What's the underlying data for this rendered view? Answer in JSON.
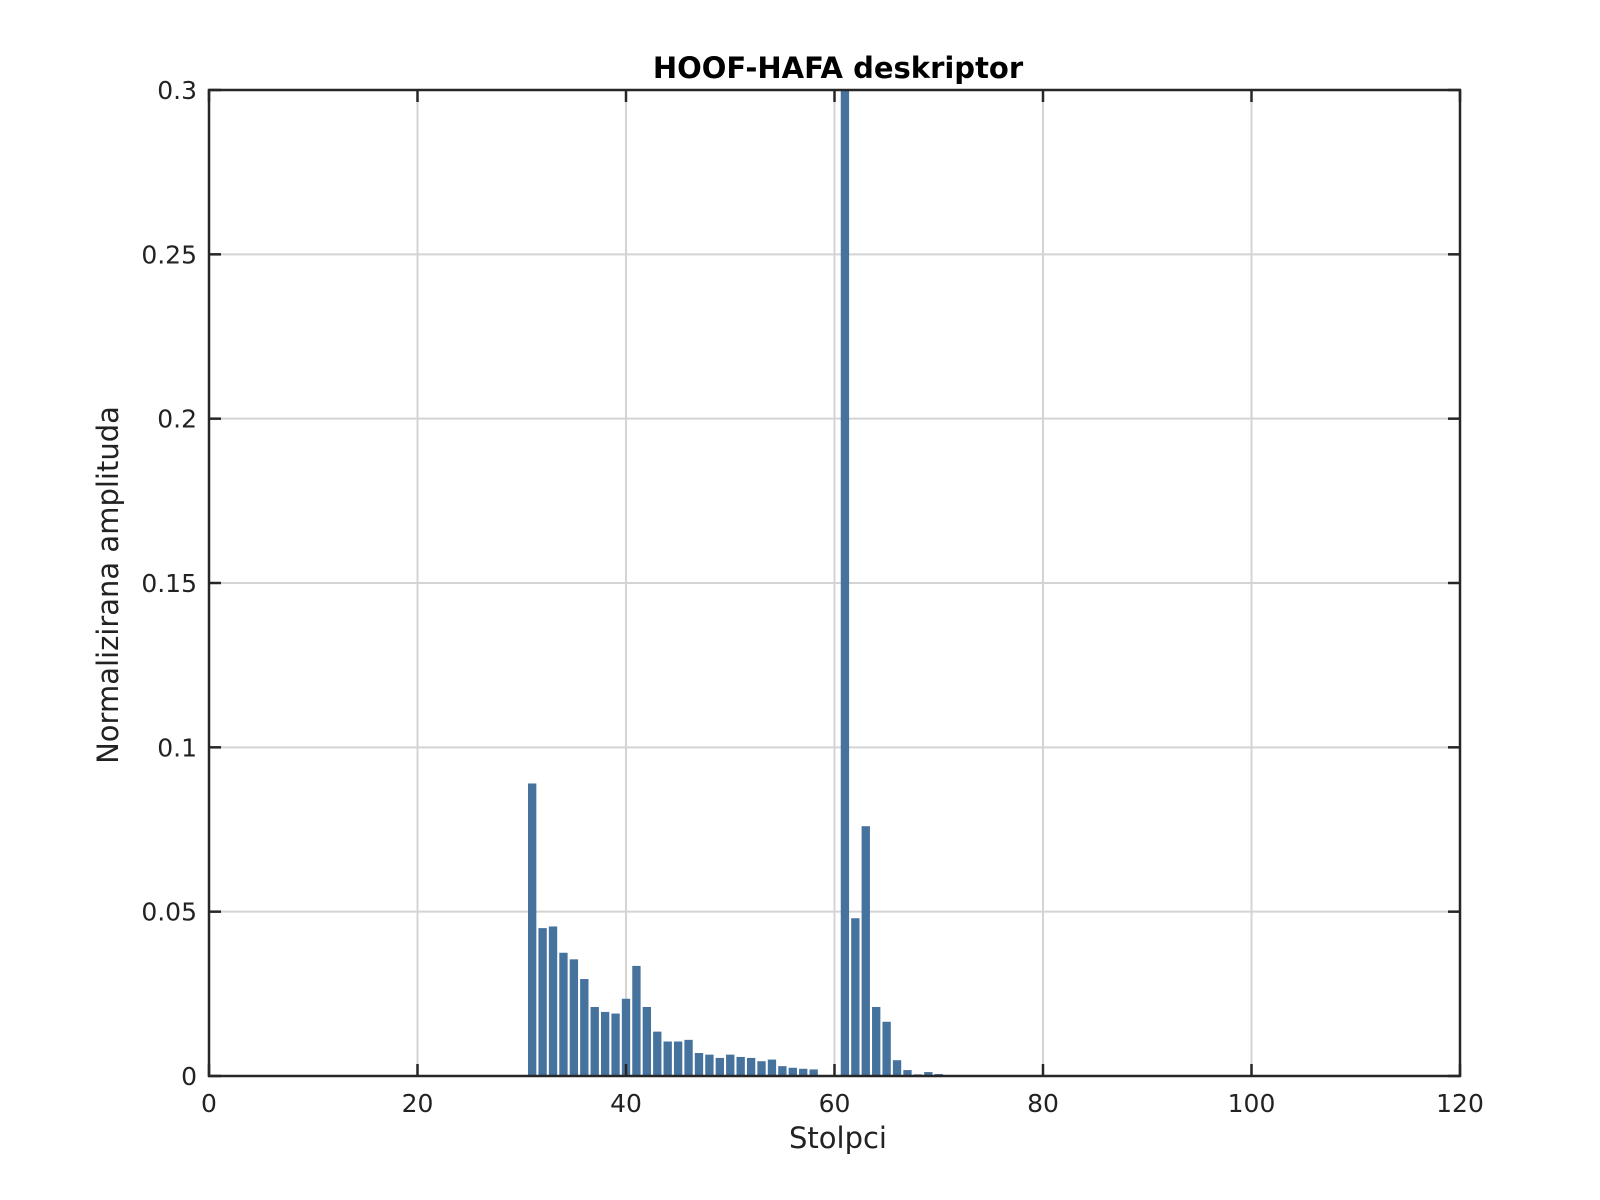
{
  "chart_data": {
    "type": "bar",
    "title": "HOOF-HAFA deskriptor",
    "xlabel": "Stolpci",
    "ylabel": "Normalizirana amplituda",
    "xlim": [
      0,
      120
    ],
    "ylim": [
      0,
      0.3
    ],
    "xticks": [
      0,
      20,
      40,
      60,
      80,
      100,
      120
    ],
    "xtick_labels": [
      "0",
      "20",
      "40",
      "60",
      "80",
      "100",
      "120"
    ],
    "yticks": [
      0,
      0.05,
      0.1,
      0.15,
      0.2,
      0.25,
      0.3
    ],
    "ytick_labels": [
      "0",
      "0.05",
      "0.1",
      "0.15",
      "0.2",
      "0.25",
      "0.3"
    ],
    "grid": true,
    "bar_color": "#46729e",
    "x": [
      31,
      32,
      33,
      34,
      35,
      36,
      37,
      38,
      39,
      40,
      41,
      42,
      43,
      44,
      45,
      46,
      47,
      48,
      49,
      50,
      51,
      52,
      53,
      54,
      55,
      56,
      57,
      58,
      59,
      60,
      61,
      62,
      63,
      64,
      65,
      66,
      67,
      68,
      69,
      70
    ],
    "values": [
      0.089,
      0.045,
      0.0455,
      0.0375,
      0.0355,
      0.0295,
      0.021,
      0.0195,
      0.019,
      0.0235,
      0.0335,
      0.021,
      0.0135,
      0.0105,
      0.0105,
      0.011,
      0.007,
      0.0065,
      0.0055,
      0.0065,
      0.0058,
      0.0055,
      0.0045,
      0.005,
      0.003,
      0.0025,
      0.0022,
      0.002,
      0,
      0,
      0.302,
      0.048,
      0.076,
      0.021,
      0.0165,
      0.0048,
      0.0018,
      0.0005,
      0.0012,
      0.0006
    ]
  }
}
